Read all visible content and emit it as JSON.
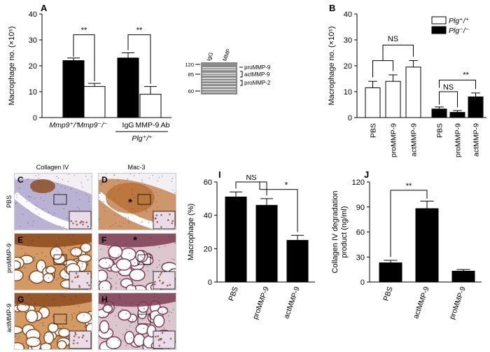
{
  "panels": {
    "A": {
      "label": "A",
      "ylabel": "Macrophage no. (×10⁵)",
      "ylim": [
        0,
        40
      ],
      "yticks": [
        "0",
        "10",
        "20",
        "30",
        "40"
      ],
      "group_labels": [
        "Mmp9⁺/⁺",
        "Mmp9⁻/⁻",
        "IgG",
        "MMP-9 Ab"
      ],
      "sub_label": "Plg⁺/⁺",
      "significance": [
        "**",
        "**"
      ]
    },
    "blot": {
      "lane_labels": [
        "IgG",
        "MMP-9 Ab"
      ],
      "mw_markers": [
        "120",
        "85",
        "60"
      ],
      "band_labels": [
        "proMMP-9",
        "actMMP-9",
        "proMMP-2"
      ]
    },
    "B": {
      "label": "B",
      "ylabel": "Macrophage no. (×10⁵)",
      "ylim": [
        0,
        40
      ],
      "yticks": [
        "0",
        "10",
        "20",
        "30",
        "40"
      ],
      "categories": [
        "PBS",
        "proMMP-9",
        "actMMP-9",
        "PBS",
        "proMMP-9",
        "actMMP-9"
      ],
      "legend": [
        "Plg⁺/⁺",
        "Plg⁻/⁻"
      ],
      "significance": [
        "NS",
        "NS",
        "**"
      ]
    },
    "micro": {
      "col_titles": [
        "Collagen IV",
        "Mac-3"
      ],
      "row_labels": [
        "PBS",
        "proMMP-9",
        "actMMP-9"
      ],
      "labels": [
        "C",
        "D",
        "E",
        "F",
        "G",
        "H"
      ],
      "asterisk": "*"
    },
    "I": {
      "label": "I",
      "ylabel": "Macrophage (%)",
      "ylim": [
        0,
        60
      ],
      "yticks": [
        "0",
        "20",
        "40",
        "60"
      ],
      "categories": [
        "PBS",
        "proMMP-9",
        "actMMP-9"
      ],
      "significance": [
        "NS",
        "*"
      ]
    },
    "J": {
      "label": "J",
      "ylabel": "Collagen IV degradation product (ng/ml)",
      "ylim": [
        0,
        120
      ],
      "yticks": [
        "0",
        "30",
        "60",
        "90",
        "120"
      ],
      "categories": [
        "PBS",
        "actMMP-9",
        "proMMP-9"
      ],
      "significance": [
        "**"
      ]
    }
  },
  "colors": {
    "black_bar": "#000000",
    "white_bar": "#ffffff",
    "collagen_stain": "#9a5a2a",
    "hematoxylin": "#8f86b8"
  },
  "chart_data": [
    {
      "type": "bar",
      "categories": [
        "Mmp9⁺/⁺",
        "Mmp9⁻/⁻",
        "IgG",
        "MMP-9 Ab"
      ],
      "values": [
        22,
        12,
        23,
        9
      ],
      "errors": [
        1,
        1.2,
        2,
        3
      ],
      "ylim": [
        0,
        40
      ]
    },
    {
      "type": "bar",
      "categories": [
        "PBS",
        "proMMP-9",
        "actMMP-9",
        "PBS",
        "proMMP-9",
        "actMMP-9"
      ],
      "series": [
        {
          "name": "Plg⁺/⁺",
          "values": [
            11.5,
            14,
            19.5,
            null,
            null,
            null
          ],
          "errors": [
            2.5,
            2.5,
            2.5,
            null,
            null,
            null
          ]
        },
        {
          "name": "Plg⁻/⁻",
          "values": [
            null,
            null,
            null,
            3.3,
            2,
            8
          ],
          "errors": [
            null,
            null,
            null,
            0.8,
            0.7,
            1.5
          ]
        }
      ],
      "ylim": [
        0,
        40
      ]
    },
    {
      "type": "bar",
      "categories": [
        "PBS",
        "proMMP-9",
        "actMMP-9"
      ],
      "values": [
        51,
        46,
        25
      ],
      "errors": [
        3,
        4,
        3
      ],
      "ylim": [
        0,
        60
      ]
    },
    {
      "type": "bar",
      "categories": [
        "PBS",
        "actMMP-9",
        "proMMP-9"
      ],
      "values": [
        23,
        88,
        13
      ],
      "errors": [
        3,
        9,
        2
      ],
      "ylim": [
        0,
        120
      ]
    }
  ]
}
